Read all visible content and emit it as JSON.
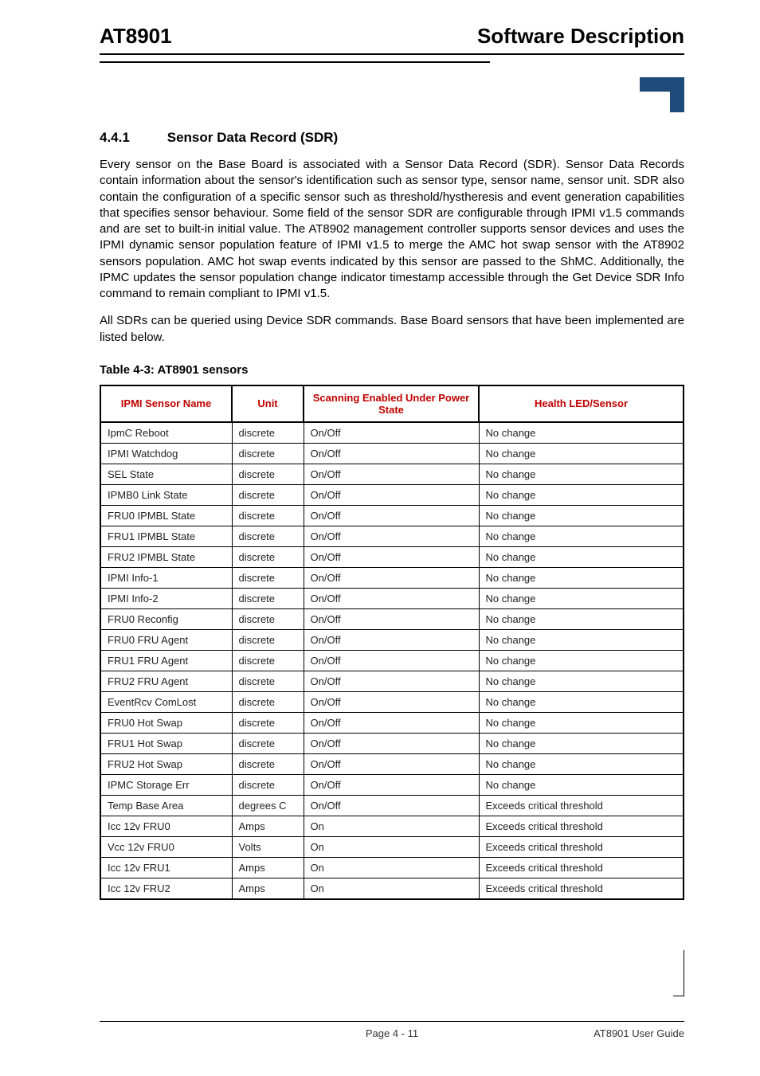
{
  "header": {
    "left": "AT8901",
    "right": "Software Description"
  },
  "section": {
    "number": "4.4.1",
    "title": "Sensor Data Record (SDR)"
  },
  "paragraphs": {
    "p1": "Every sensor on the Base Board is associated with a Sensor Data Record (SDR). Sensor Data Records contain information about the sensor's identification such as sensor type, sensor name, sensor unit. SDR also contain the configuration of a specific sensor such as threshold/hystheresis and event generation capabilities that specifies sensor behaviour. Some field of the sensor SDR are configurable through IPMI v1.5 commands and are set to built-in initial value. The AT8902 management controller supports sensor devices and uses the IPMI dynamic sensor population feature of IPMI v1.5 to merge the AMC hot swap sensor with the AT8902 sensors population. AMC hot swap events indicated by this sensor are passed to the ShMC. Additionally, the IPMC updates the sensor population change indicator timestamp accessible through the Get Device SDR Info command to remain compliant to IPMI v1.5.",
    "p2": "All SDRs can be queried using Device SDR commands. Base Board sensors that have been implemented are listed below."
  },
  "table": {
    "caption": "Table 4-3:   AT8901 sensors",
    "columns": [
      "IPMI Sensor Name",
      "Unit",
      "Scanning Enabled Under Power State",
      "Health LED/Sensor"
    ],
    "rows": [
      [
        "IpmC Reboot",
        "discrete",
        "On/Off",
        "No change"
      ],
      [
        "IPMI Watchdog",
        "discrete",
        "On/Off",
        "No change"
      ],
      [
        "SEL State",
        "discrete",
        "On/Off",
        "No change"
      ],
      [
        "IPMB0 Link State",
        "discrete",
        "On/Off",
        "No change"
      ],
      [
        "FRU0 IPMBL State",
        "discrete",
        "On/Off",
        "No change"
      ],
      [
        "FRU1 IPMBL State",
        "discrete",
        "On/Off",
        "No change"
      ],
      [
        "FRU2 IPMBL State",
        "discrete",
        "On/Off",
        "No change"
      ],
      [
        "IPMI Info-1",
        "discrete",
        "On/Off",
        "No change"
      ],
      [
        "IPMI Info-2",
        "discrete",
        "On/Off",
        "No change"
      ],
      [
        "FRU0 Reconfig",
        "discrete",
        "On/Off",
        "No change"
      ],
      [
        "FRU0 FRU Agent",
        "discrete",
        "On/Off",
        "No change"
      ],
      [
        "FRU1 FRU Agent",
        "discrete",
        "On/Off",
        "No change"
      ],
      [
        "FRU2 FRU Agent",
        "discrete",
        "On/Off",
        "No change"
      ],
      [
        "EventRcv ComLost",
        "discrete",
        "On/Off",
        "No change"
      ],
      [
        "FRU0 Hot Swap",
        "discrete",
        "On/Off",
        "No change"
      ],
      [
        "FRU1 Hot Swap",
        "discrete",
        "On/Off",
        "No change"
      ],
      [
        "FRU2 Hot Swap",
        "discrete",
        "On/Off",
        "No change"
      ],
      [
        "IPMC Storage Err",
        "discrete",
        "On/Off",
        "No change"
      ],
      [
        "Temp Base Area",
        "degrees C",
        "On/Off",
        "Exceeds critical threshold"
      ],
      [
        "Icc 12v FRU0",
        "Amps",
        "On",
        "Exceeds critical threshold"
      ],
      [
        "Vcc 12v FRU0",
        "Volts",
        "On",
        "Exceeds critical threshold"
      ],
      [
        "Icc 12v FRU1",
        "Amps",
        "On",
        "Exceeds critical threshold"
      ],
      [
        "Icc 12v FRU2",
        "Amps",
        "On",
        "Exceeds critical threshold"
      ]
    ]
  },
  "footer": {
    "center": "Page 4 - 11",
    "right": "AT8901 User Guide"
  },
  "colors": {
    "header_red": "#c00000",
    "logo_blue": "#1e4a7a"
  }
}
